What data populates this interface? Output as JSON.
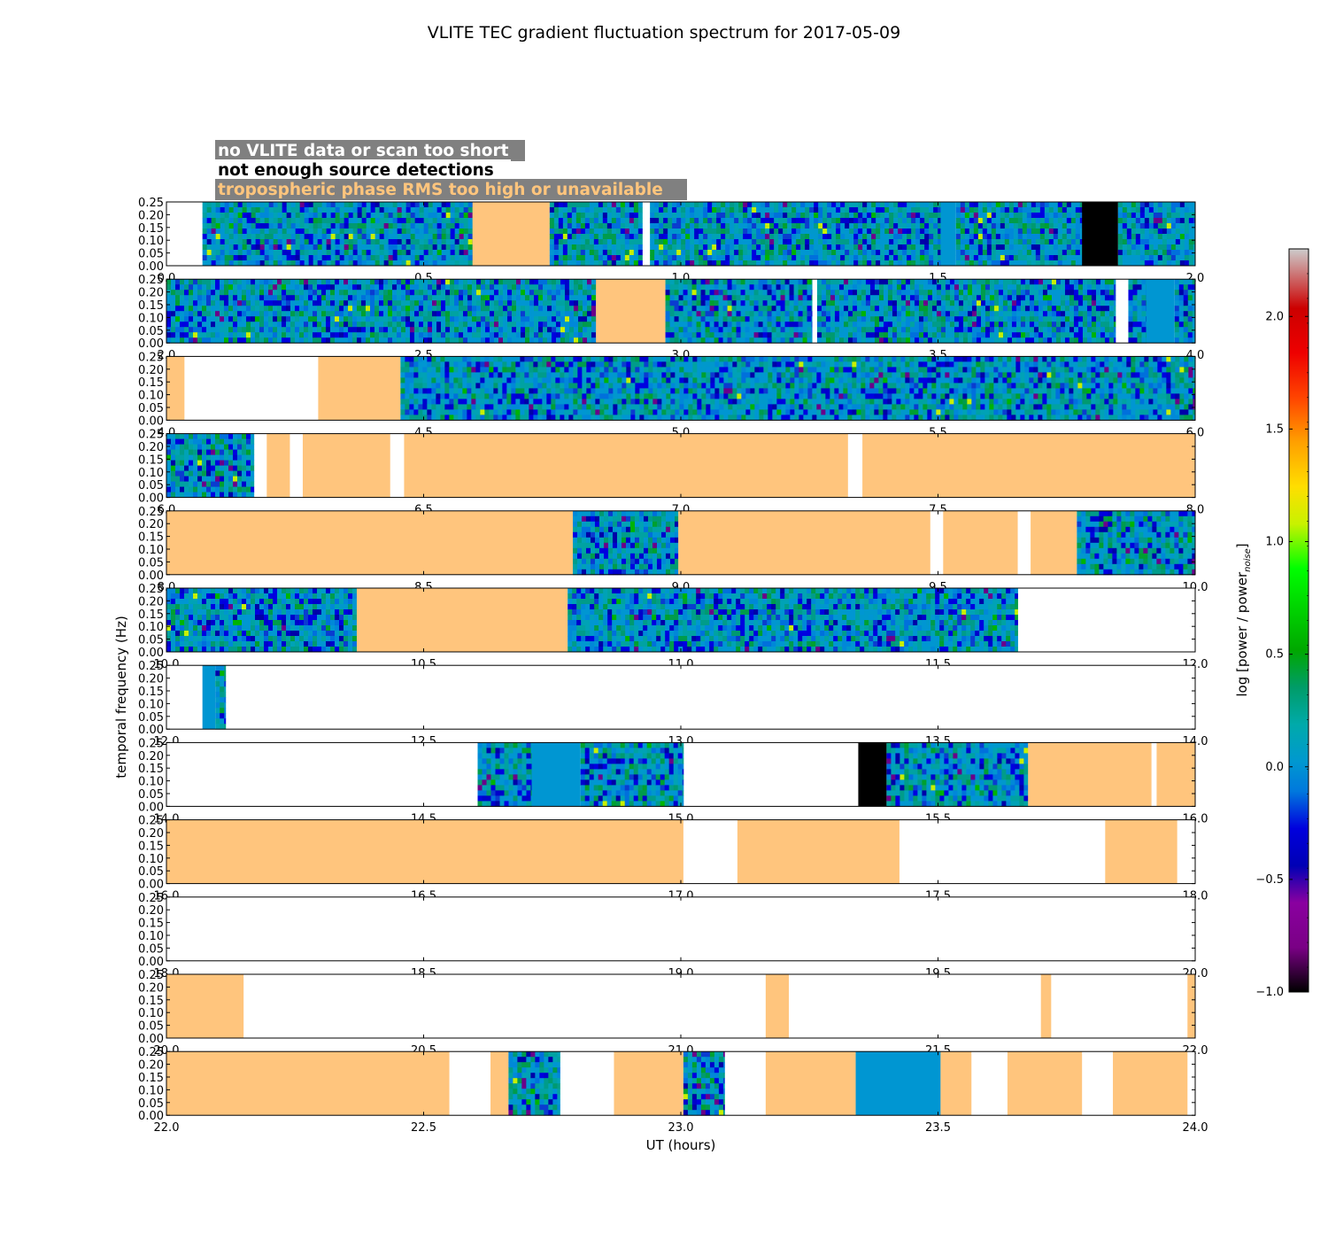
{
  "chart_data": {
    "type": "heatmap",
    "title": "VLITE TEC gradient fluctuation spectrum for 2017-05-09",
    "xlabel": "UT (hours)",
    "ylabel": "temporal frequency (Hz)",
    "ylim": [
      0,
      0.25
    ],
    "yticks": [
      "0.00",
      "0.05",
      "0.10",
      "0.15",
      "0.20",
      "0.25"
    ],
    "colorbar": {
      "label": "log [power / power",
      "label_subscript": "noise",
      "label_close": "]",
      "range": [
        -1.0,
        2.3
      ],
      "ticks": [
        "−1.0",
        "−0.5",
        "0.0",
        "0.5",
        "1.0",
        "1.5",
        "2.0"
      ],
      "tick_values": [
        -1.0,
        -0.5,
        0.0,
        0.5,
        1.0,
        1.5,
        2.0
      ],
      "colormap": "nipy_spectral-like"
    },
    "legend": [
      {
        "text": "no VLITE data or scan too short",
        "color": "#ffffff",
        "meaning": "no_data"
      },
      {
        "text": "not enough source detections",
        "color": "#000000",
        "meaning": "few_sources"
      },
      {
        "text": "tropospheric phase RMS too high or unavailable",
        "color": "#ffc57d",
        "meaning": "tropo"
      }
    ],
    "status_colors": {
      "black": "#000000",
      "tropo": "#ffc57d",
      "flat": "#0096d2"
    },
    "panels": [
      {
        "xlim": [
          0,
          2
        ],
        "xticks": [
          "0.0",
          "0.5",
          "1.0",
          "1.5",
          "2.0"
        ],
        "segments": [
          {
            "start": 0.07,
            "end": 0.595,
            "kind": "spectrum"
          },
          {
            "start": 0.595,
            "end": 0.745,
            "kind": "tropo"
          },
          {
            "start": 0.745,
            "end": 0.925,
            "kind": "spectrum"
          },
          {
            "start": 0.94,
            "end": 1.505,
            "kind": "spectrum"
          },
          {
            "start": 1.505,
            "end": 1.535,
            "kind": "flat"
          },
          {
            "start": 1.535,
            "end": 1.78,
            "kind": "spectrum"
          },
          {
            "start": 1.78,
            "end": 1.85,
            "kind": "black"
          },
          {
            "start": 1.85,
            "end": 2.0,
            "kind": "spectrum"
          }
        ]
      },
      {
        "xlim": [
          2,
          4
        ],
        "xticks": [
          "2.0",
          "2.5",
          "3.0",
          "3.5",
          "4.0"
        ],
        "segments": [
          {
            "start": 2.0,
            "end": 2.835,
            "kind": "spectrum"
          },
          {
            "start": 2.835,
            "end": 2.97,
            "kind": "tropo"
          },
          {
            "start": 2.97,
            "end": 3.255,
            "kind": "spectrum"
          },
          {
            "start": 3.265,
            "end": 3.845,
            "kind": "spectrum"
          },
          {
            "start": 3.87,
            "end": 3.905,
            "kind": "spectrum"
          },
          {
            "start": 3.905,
            "end": 3.96,
            "kind": "flat"
          },
          {
            "start": 3.96,
            "end": 4.0,
            "kind": "spectrum"
          }
        ]
      },
      {
        "xlim": [
          4,
          6
        ],
        "xticks": [
          "4.0",
          "4.5",
          "5.0",
          "5.5",
          "6.0"
        ],
        "segments": [
          {
            "start": 4.0,
            "end": 4.035,
            "kind": "tropo"
          },
          {
            "start": 4.295,
            "end": 4.455,
            "kind": "tropo"
          },
          {
            "start": 4.455,
            "end": 6.0,
            "kind": "spectrum"
          }
        ]
      },
      {
        "xlim": [
          6,
          8
        ],
        "xticks": [
          "6.0",
          "6.5",
          "7.0",
          "7.5",
          "8.0"
        ],
        "segments": [
          {
            "start": 6.0,
            "end": 6.17,
            "kind": "spectrum"
          },
          {
            "start": 6.195,
            "end": 6.24,
            "kind": "tropo"
          },
          {
            "start": 6.265,
            "end": 6.435,
            "kind": "tropo"
          },
          {
            "start": 6.462,
            "end": 7.325,
            "kind": "tropo"
          },
          {
            "start": 7.353,
            "end": 8.0,
            "kind": "tropo"
          }
        ]
      },
      {
        "xlim": [
          8,
          10
        ],
        "xticks": [
          "8.0",
          "8.5",
          "9.0",
          "9.5",
          "10.0"
        ],
        "segments": [
          {
            "start": 8.0,
            "end": 8.79,
            "kind": "tropo"
          },
          {
            "start": 8.79,
            "end": 8.995,
            "kind": "spectrum"
          },
          {
            "start": 8.995,
            "end": 9.485,
            "kind": "tropo"
          },
          {
            "start": 9.51,
            "end": 9.655,
            "kind": "tropo"
          },
          {
            "start": 9.68,
            "end": 9.77,
            "kind": "tropo"
          },
          {
            "start": 9.77,
            "end": 10.0,
            "kind": "spectrum"
          }
        ]
      },
      {
        "xlim": [
          10,
          12
        ],
        "xticks": [
          "10.0",
          "10.5",
          "11.0",
          "11.5",
          "12.0"
        ],
        "segments": [
          {
            "start": 10.0,
            "end": 10.37,
            "kind": "spectrum"
          },
          {
            "start": 10.37,
            "end": 10.78,
            "kind": "tropo"
          },
          {
            "start": 10.78,
            "end": 11.655,
            "kind": "spectrum"
          }
        ]
      },
      {
        "xlim": [
          12,
          14
        ],
        "xticks": [
          "12.0",
          "12.5",
          "13.0",
          "13.5",
          "14.0"
        ],
        "segments": [
          {
            "start": 12.07,
            "end": 12.095,
            "kind": "flat"
          },
          {
            "start": 12.095,
            "end": 12.115,
            "kind": "spectrum"
          }
        ]
      },
      {
        "xlim": [
          14,
          16
        ],
        "xticks": [
          "14.0",
          "14.5",
          "15.0",
          "15.5",
          "16.0"
        ],
        "segments": [
          {
            "start": 14.605,
            "end": 14.71,
            "kind": "spectrum"
          },
          {
            "start": 14.71,
            "end": 14.805,
            "kind": "flat"
          },
          {
            "start": 14.805,
            "end": 15.005,
            "kind": "spectrum"
          },
          {
            "start": 15.345,
            "end": 15.4,
            "kind": "black"
          },
          {
            "start": 15.4,
            "end": 15.675,
            "kind": "spectrum"
          },
          {
            "start": 15.675,
            "end": 15.915,
            "kind": "tropo"
          },
          {
            "start": 15.925,
            "end": 16.0,
            "kind": "tropo"
          }
        ]
      },
      {
        "xlim": [
          16,
          18
        ],
        "xticks": [
          "16.0",
          "16.5",
          "17.0",
          "17.5",
          "18.0"
        ],
        "segments": [
          {
            "start": 16.0,
            "end": 17.005,
            "kind": "tropo"
          },
          {
            "start": 17.11,
            "end": 17.425,
            "kind": "tropo"
          },
          {
            "start": 17.825,
            "end": 17.965,
            "kind": "tropo"
          }
        ]
      },
      {
        "xlim": [
          18,
          20
        ],
        "xticks": [
          "18.0",
          "18.5",
          "19.0",
          "19.5",
          "20.0"
        ],
        "segments": []
      },
      {
        "xlim": [
          20,
          22
        ],
        "xticks": [
          "20.0",
          "20.5",
          "21.0",
          "21.5",
          "22.0"
        ],
        "segments": [
          {
            "start": 20.0,
            "end": 20.15,
            "kind": "tropo"
          },
          {
            "start": 21.165,
            "end": 21.21,
            "kind": "tropo"
          },
          {
            "start": 21.7,
            "end": 21.72,
            "kind": "tropo"
          },
          {
            "start": 21.985,
            "end": 22.0,
            "kind": "tropo"
          }
        ]
      },
      {
        "xlim": [
          22,
          24
        ],
        "xticks": [
          "22.0",
          "22.5",
          "23.0",
          "23.5",
          "24.0"
        ],
        "segments": [
          {
            "start": 22.0,
            "end": 22.55,
            "kind": "tropo"
          },
          {
            "start": 22.63,
            "end": 22.665,
            "kind": "tropo"
          },
          {
            "start": 22.665,
            "end": 22.765,
            "kind": "spectrum"
          },
          {
            "start": 22.87,
            "end": 23.005,
            "kind": "tropo"
          },
          {
            "start": 23.005,
            "end": 23.085,
            "kind": "spectrum"
          },
          {
            "start": 23.165,
            "end": 23.34,
            "kind": "tropo"
          },
          {
            "start": 23.34,
            "end": 23.505,
            "kind": "flat"
          },
          {
            "start": 23.505,
            "end": 23.565,
            "kind": "tropo"
          },
          {
            "start": 23.635,
            "end": 23.78,
            "kind": "tropo"
          },
          {
            "start": 23.84,
            "end": 23.985,
            "kind": "tropo"
          }
        ]
      }
    ]
  }
}
